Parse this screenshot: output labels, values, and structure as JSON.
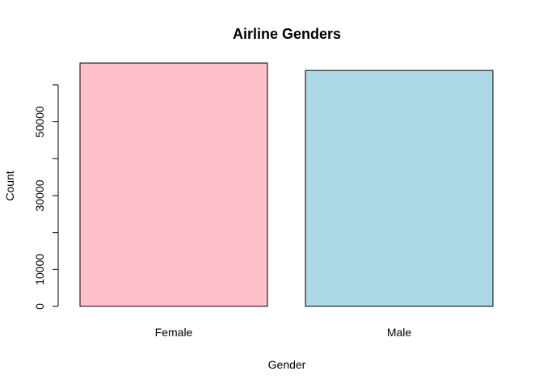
{
  "chart_data": {
    "type": "bar",
    "title": "Airline Genders",
    "xlabel": "Gender",
    "ylabel": "Count",
    "categories": [
      "Female",
      "Male"
    ],
    "values": [
      65900,
      63900
    ],
    "colors": [
      "#FFC0CB",
      "#ADD8E6"
    ],
    "ylim": [
      0,
      65900
    ],
    "yticks": [
      0,
      10000,
      20000,
      30000,
      40000,
      50000,
      60000
    ],
    "ytick_labels": [
      "0",
      "10000",
      "",
      "30000",
      "",
      "50000",
      ""
    ],
    "grid": false,
    "legend": "none"
  }
}
